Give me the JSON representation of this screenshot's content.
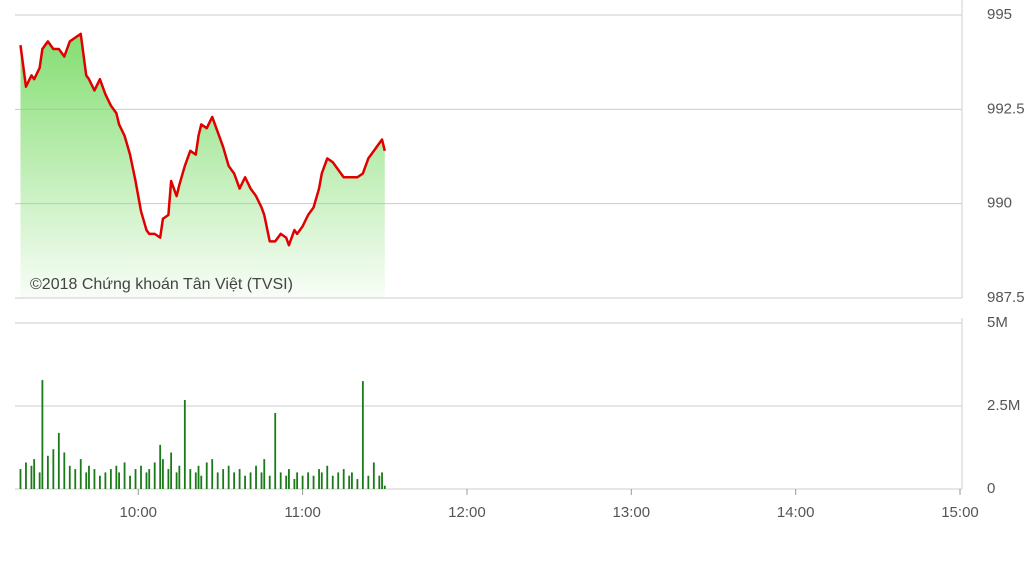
{
  "chart_data": [
    {
      "type": "line",
      "annotation": "©2018 Chứng khoán Tân Việt (TVSI)",
      "color": "#e00000",
      "fill_color": "#7ddc6a",
      "x": [
        557,
        559,
        561,
        562,
        564,
        565,
        567,
        569,
        571,
        573,
        575,
        577,
        579,
        581,
        582,
        584,
        586,
        588,
        590,
        592,
        593,
        595,
        597,
        599,
        601,
        603,
        604,
        606,
        608,
        609,
        611,
        612,
        614,
        615,
        617,
        619,
        621,
        622,
        623,
        625,
        627,
        629,
        631,
        633,
        635,
        637,
        639,
        641,
        643,
        645,
        646,
        648,
        650,
        652,
        654,
        655,
        657,
        658,
        660,
        662,
        664,
        666,
        667,
        669,
        671,
        673,
        675,
        677,
        678,
        680,
        682,
        684,
        686,
        688,
        689,
        690
      ],
      "values": [
        994.2,
        993.1,
        993.4,
        993.3,
        993.6,
        994.1,
        994.3,
        994.1,
        994.1,
        993.9,
        994.3,
        994.4,
        994.5,
        993.4,
        993.3,
        993.0,
        993.3,
        992.9,
        992.6,
        992.4,
        992.1,
        991.8,
        991.3,
        990.6,
        989.8,
        989.3,
        989.2,
        989.2,
        989.1,
        989.6,
        989.7,
        990.6,
        990.2,
        990.5,
        991.0,
        991.4,
        991.3,
        991.8,
        992.1,
        992.0,
        992.3,
        991.9,
        991.5,
        991.0,
        990.8,
        990.4,
        990.7,
        990.4,
        990.2,
        989.9,
        989.7,
        989.0,
        989.0,
        989.2,
        989.1,
        988.9,
        989.3,
        989.2,
        989.4,
        989.7,
        989.9,
        990.4,
        990.8,
        991.2,
        991.1,
        990.9,
        990.7,
        990.7,
        990.7,
        990.7,
        990.8,
        991.2,
        991.4,
        991.6,
        991.7,
        991.4
      ],
      "xlim": [
        555,
        900
      ],
      "ylim": [
        987.5,
        995
      ],
      "yticks": [
        987.5,
        990,
        992.5,
        995
      ],
      "grid": true
    },
    {
      "type": "bar",
      "color": "#1a7a1a",
      "x": [
        557,
        559,
        561,
        562,
        564,
        565,
        567,
        569,
        571,
        573,
        575,
        577,
        579,
        581,
        582,
        584,
        586,
        588,
        590,
        592,
        593,
        595,
        597,
        599,
        601,
        603,
        604,
        606,
        608,
        609,
        611,
        612,
        614,
        615,
        617,
        619,
        621,
        622,
        623,
        625,
        627,
        629,
        631,
        633,
        635,
        637,
        639,
        641,
        643,
        645,
        646,
        648,
        650,
        652,
        654,
        655,
        657,
        658,
        660,
        662,
        664,
        666,
        667,
        669,
        671,
        673,
        675,
        677,
        678,
        680,
        682,
        684,
        686,
        688,
        689,
        690
      ],
      "values": [
        600000,
        800000,
        700000,
        900000,
        500000,
        3280000,
        1000000,
        1200000,
        1690000,
        1100000,
        700000,
        600000,
        900000,
        500000,
        700000,
        600000,
        400000,
        500000,
        600000,
        700000,
        500000,
        800000,
        400000,
        600000,
        700000,
        500000,
        600000,
        800000,
        1330000,
        900000,
        600000,
        1100000,
        500000,
        700000,
        2680000,
        600000,
        500000,
        700000,
        400000,
        800000,
        900000,
        500000,
        600000,
        700000,
        500000,
        600000,
        400000,
        500000,
        700000,
        500000,
        900000,
        400000,
        2290000,
        500000,
        400000,
        600000,
        300000,
        500000,
        400000,
        500000,
        400000,
        600000,
        500000,
        700000,
        400000,
        500000,
        600000,
        400000,
        500000,
        300000,
        3250000,
        400000,
        800000,
        400000,
        500000,
        100000
      ],
      "xlim": [
        555,
        900
      ],
      "xticks": [
        {
          "value": 600,
          "label": "10:00"
        },
        {
          "value": 660,
          "label": "11:00"
        },
        {
          "value": 720,
          "label": "12:00"
        },
        {
          "value": 780,
          "label": "13:00"
        },
        {
          "value": 840,
          "label": "14:00"
        },
        {
          "value": 900,
          "label": "15:00"
        }
      ],
      "ylim": [
        0,
        5000000
      ],
      "yticks": [
        0,
        {
          "value": 2500000,
          "label": "2.5M"
        },
        {
          "value": 5000000,
          "label": "5M"
        }
      ],
      "grid": true
    }
  ]
}
